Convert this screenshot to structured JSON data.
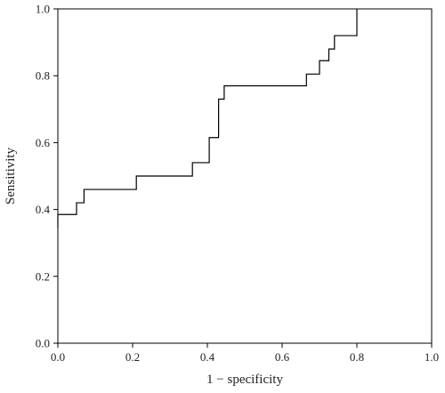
{
  "chart_data": {
    "type": "line",
    "title": "",
    "xlabel": "1 − specificity",
    "ylabel": "Sensitivity",
    "xlim": [
      0.0,
      1.0
    ],
    "ylim": [
      0.0,
      1.0
    ],
    "grid": false,
    "legend": "none",
    "x_ticks": [
      "0.0",
      "0.2",
      "0.4",
      "0.6",
      "0.8",
      "1.0"
    ],
    "y_ticks": [
      "0.0",
      "0.2",
      "0.4",
      "0.6",
      "0.8",
      "1.0"
    ],
    "series": [
      {
        "values": [
          [
            0.0,
            0.345
          ],
          [
            0.0,
            0.345
          ],
          [
            0.0,
            0.385
          ],
          [
            0.05,
            0.385
          ],
          [
            0.05,
            0.42
          ],
          [
            0.07,
            0.42
          ],
          [
            0.07,
            0.46
          ],
          [
            0.21,
            0.46
          ],
          [
            0.21,
            0.5
          ],
          [
            0.36,
            0.5
          ],
          [
            0.36,
            0.54
          ],
          [
            0.405,
            0.54
          ],
          [
            0.405,
            0.615
          ],
          [
            0.43,
            0.615
          ],
          [
            0.43,
            0.73
          ],
          [
            0.445,
            0.73
          ],
          [
            0.445,
            0.77
          ],
          [
            0.665,
            0.77
          ],
          [
            0.665,
            0.805
          ],
          [
            0.7,
            0.805
          ],
          [
            0.7,
            0.845
          ],
          [
            0.725,
            0.845
          ],
          [
            0.725,
            0.88
          ],
          [
            0.74,
            0.88
          ],
          [
            0.74,
            0.92
          ],
          [
            0.8,
            0.92
          ],
          [
            0.8,
            1.0
          ]
        ],
        "color": "#000000"
      }
    ]
  }
}
